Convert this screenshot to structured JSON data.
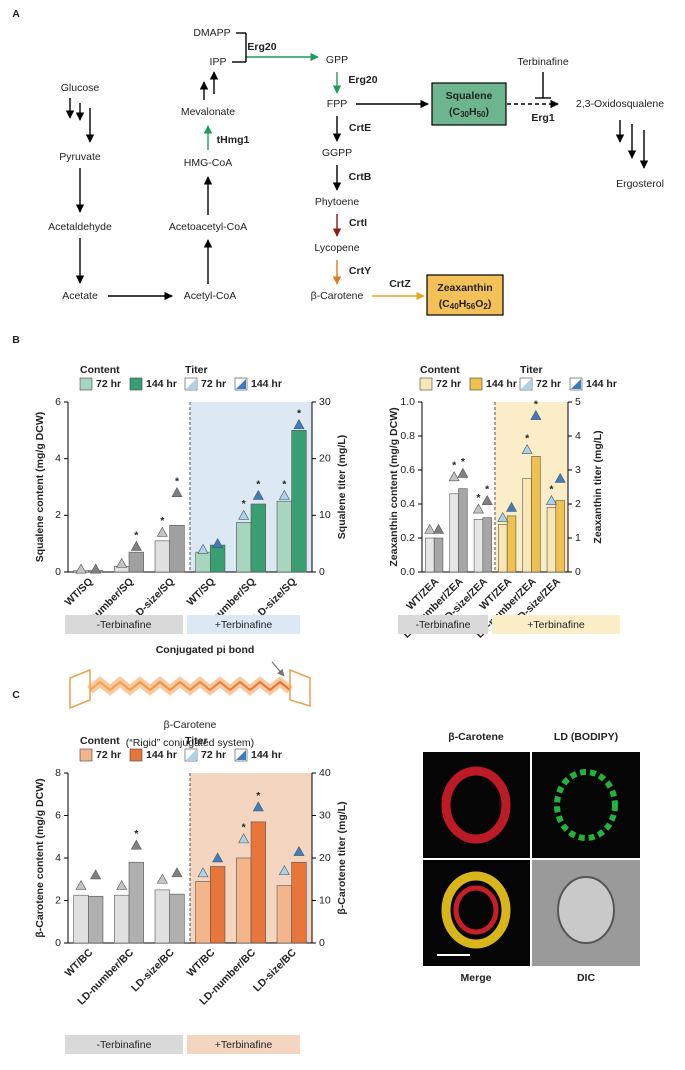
{
  "panels": [
    "A",
    "B",
    "C"
  ],
  "pathway": {
    "nodes": [
      "Glucose",
      "Pyruvate",
      "Acetaldehyde",
      "Acetate",
      "Acetyl-CoA",
      "Acetoacetyl-CoA",
      "HMG-CoA",
      "Mevalonate",
      "IPP",
      "DMAPP",
      "GPP",
      "FPP",
      "GGPP",
      "Phytoene",
      "Lycopene",
      "β-Carotene",
      "Terbinafine",
      "2,3-Oxidosqualene",
      "Ergosterol"
    ],
    "enzymes": [
      {
        "label": "Erg20",
        "color": "#2f5fa7"
      },
      {
        "label": "Erg20",
        "color": "#2f5fa7"
      },
      {
        "label": "CrtE",
        "color": "#2f5fa7"
      },
      {
        "label": "CrtB",
        "color": "#2f5fa7"
      },
      {
        "label": "CrtI",
        "color": "#8b1a1a"
      },
      {
        "label": "CrtY",
        "color": "#e07b20"
      },
      {
        "label": "CrtZ",
        "color": "#e8a520"
      },
      {
        "label": "tHmg1",
        "color": "#2f5fa7"
      },
      {
        "label": "Erg1",
        "color": "#d7262b"
      }
    ],
    "products": [
      {
        "label": "Squalene",
        "formula": [
          "(C",
          "30",
          "H",
          "50",
          ")"
        ],
        "color": "#6db58f"
      },
      {
        "label": "Zeaxanthin",
        "formula": [
          "(C",
          "40",
          "H",
          "56",
          "O",
          "2",
          ")"
        ],
        "color": "#f4c158"
      }
    ]
  },
  "structure": {
    "annotation": "Conjugated pi bond",
    "name": "β-Carotene",
    "caption": "(“Rigid” conjugated system)"
  },
  "microscopy": {
    "labels": [
      "β-Carotene",
      "LD (BODIPY)",
      "Merge",
      "DIC"
    ]
  },
  "chart_data": [
    {
      "type": "bar",
      "y_label": "Squalene content (mg/g DCW)",
      "y2_label": "Squalene titer (mg/L)",
      "categories": [
        "WT/SQ",
        "LD-number/SQ",
        "LD-size/SQ",
        "WT/SQ",
        "LD-number/SQ",
        "LD-size/SQ"
      ],
      "legend_titles": [
        "Content",
        "Titer"
      ],
      "groups": [
        {
          "label": "-Terbinafine",
          "color": "#d9d9d9"
        },
        {
          "label": "+Terbinafine",
          "color": "#dce9f5"
        }
      ],
      "series": [
        {
          "name": "72 hr",
          "values": [
            0.05,
            0.2,
            1.1,
            0.7,
            1.75,
            2.5
          ],
          "colors": [
            "#e0e0e0",
            "#e0e0e0",
            "#e0e0e0",
            "#a7d5be",
            "#a7d5be",
            "#a7d5be"
          ]
        },
        {
          "name": "144 hr",
          "values": [
            0.05,
            0.7,
            1.65,
            0.95,
            2.4,
            5.0
          ],
          "colors": [
            "#a0a0a0",
            "#a0a0a0",
            "#a0a0a0",
            "#3a9e73",
            "#3a9e73",
            "#3a9e73"
          ]
        },
        {
          "name": "72 hr",
          "axis": "y2",
          "values": [
            0.5,
            1.5,
            7,
            4,
            10,
            13.5
          ],
          "colors": [
            "#c4c4c4",
            "#c4c4c4",
            "#c4c4c4",
            "#a8d4f0",
            "#a8d4f0",
            "#a8d4f0"
          ],
          "significance": [
            null,
            null,
            "*",
            null,
            "*",
            "*"
          ]
        },
        {
          "name": "144 hr",
          "axis": "y2",
          "values": [
            0.5,
            4.5,
            14,
            5,
            13.5,
            26
          ],
          "colors": [
            "#808080",
            "#808080",
            "#808080",
            "#3a7ec0",
            "#3a7ec0",
            "#3a7ec0"
          ],
          "significance": [
            null,
            "*",
            "*",
            null,
            "*",
            "*"
          ]
        }
      ],
      "ylim": [
        0,
        6
      ],
      "yticks": [
        0,
        2,
        4,
        6
      ],
      "y2lim": [
        0,
        30
      ],
      "y2ticks": [
        0,
        10,
        20,
        30
      ]
    },
    {
      "type": "bar",
      "y_label": "Zeaxanthin content (mg/g DCW)",
      "y2_label": "Zeaxanthin titer (mg/L)",
      "categories": [
        "WT/ZEA",
        "LD-number/ZEA",
        "LD-size/ZEA",
        "WT/ZEA",
        "LD-number/ZEA",
        "LD-size/ZEA"
      ],
      "legend_titles": [
        "Content",
        "Titer"
      ],
      "groups": [
        {
          "label": "-Terbinafine",
          "color": "#d9d9d9"
        },
        {
          "label": "+Terbinafine",
          "color": "#fbedc7"
        }
      ],
      "series": [
        {
          "name": "72 hr",
          "values": [
            0.2,
            0.46,
            0.31,
            0.28,
            0.55,
            0.38
          ],
          "colors": [
            "#e6e6e6",
            "#e6e6e6",
            "#e6e6e6",
            "#fbe7b5",
            "#fbe7b5",
            "#fbe7b5"
          ]
        },
        {
          "name": "144 hr",
          "values": [
            0.2,
            0.49,
            0.32,
            0.33,
            0.68,
            0.42
          ],
          "colors": [
            "#a6a6a6",
            "#a6a6a6",
            "#a6a6a6",
            "#f0c050",
            "#f0c050",
            "#f0c050"
          ]
        },
        {
          "name": "72 hr",
          "axis": "y2",
          "values": [
            1.25,
            2.8,
            1.85,
            1.6,
            3.6,
            2.1
          ],
          "colors": [
            "#c4c4c4",
            "#c4c4c4",
            "#c4c4c4",
            "#a8d4f0",
            "#a8d4f0",
            "#a8d4f0"
          ],
          "significance": [
            null,
            "*",
            "*",
            null,
            "*",
            "*"
          ]
        },
        {
          "name": "144 hr",
          "axis": "y2",
          "values": [
            1.25,
            2.9,
            2.1,
            1.9,
            4.6,
            2.75
          ],
          "colors": [
            "#808080",
            "#808080",
            "#808080",
            "#3a7ec0",
            "#3a7ec0",
            "#3a7ec0"
          ],
          "significance": [
            null,
            "*",
            "*",
            null,
            "*",
            null
          ]
        }
      ],
      "ylim": [
        0,
        1
      ],
      "yticks": [
        {
          "value": 0,
          "label": "0.0"
        },
        0.2,
        0.4,
        0.6,
        0.8,
        {
          "value": 1,
          "label": "1.0"
        }
      ],
      "y2lim": [
        0,
        5
      ],
      "y2ticks": [
        0,
        1,
        2,
        3,
        4,
        5
      ]
    },
    {
      "type": "bar",
      "y_label": "β-Carotene content (mg/g DCW)",
      "y2_label": "β-Carotene titer (mg/L)",
      "categories": [
        "WT/BC",
        "LD-number/BC",
        "LD-size/BC",
        "WT/BC",
        "LD-number/BC",
        "LD-size/BC"
      ],
      "legend_titles": [
        "Content",
        "Titer"
      ],
      "groups": [
        {
          "label": "-Terbinafine",
          "color": "#d9d9d9"
        },
        {
          "label": "+Terbinafine",
          "color": "#f3d5c0"
        }
      ],
      "series": [
        {
          "name": "72 hr",
          "values": [
            2.25,
            2.25,
            2.5,
            2.9,
            4.0,
            2.7
          ],
          "colors": [
            "#e0e0e0",
            "#e0e0e0",
            "#e0e0e0",
            "#f4b58a",
            "#f4b58a",
            "#f4b58a"
          ]
        },
        {
          "name": "144 hr",
          "values": [
            2.2,
            3.8,
            2.3,
            3.6,
            5.7,
            3.8
          ],
          "colors": [
            "#b0b0b0",
            "#b0b0b0",
            "#b0b0b0",
            "#e8763a",
            "#e8763a",
            "#e8763a"
          ]
        },
        {
          "name": "72 hr",
          "axis": "y2",
          "values": [
            13.5,
            13.5,
            15,
            16.5,
            24.5,
            17
          ],
          "colors": [
            "#c4c4c4",
            "#c4c4c4",
            "#c4c4c4",
            "#a8d4f0",
            "#a8d4f0",
            "#a8d4f0"
          ],
          "significance": [
            null,
            null,
            null,
            null,
            "*",
            null
          ]
        },
        {
          "name": "144 hr",
          "axis": "y2",
          "values": [
            16,
            23,
            16.5,
            20,
            32,
            21.5
          ],
          "colors": [
            "#808080",
            "#808080",
            "#808080",
            "#3a7ec0",
            "#3a7ec0",
            "#3a7ec0"
          ],
          "significance": [
            null,
            "*",
            null,
            null,
            "*",
            null
          ]
        }
      ],
      "ylim": [
        0,
        8
      ],
      "yticks": [
        0,
        2,
        4,
        6,
        8
      ],
      "y2lim": [
        0,
        40
      ],
      "y2ticks": [
        0,
        10,
        20,
        30,
        40
      ]
    }
  ]
}
